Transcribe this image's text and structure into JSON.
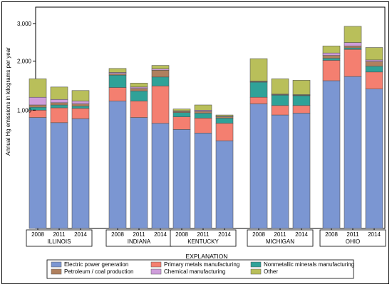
{
  "chart_data": {
    "type": "bar",
    "stacked": true,
    "ylabel": "Annual Hg emissions in kilograms per year",
    "yscale": "sqrt",
    "ylim": [
      0,
      3500
    ],
    "yticks": [
      1000,
      2000,
      3000
    ],
    "ytick_labels": [
      "1,000",
      "2,000",
      "3,000"
    ],
    "grid": false,
    "legend_title": "EXPLANATION",
    "legend_placement": "bottom",
    "groups": [
      {
        "name": "ILLINOIS",
        "years": [
          "2008",
          "2011",
          "2014"
        ]
      },
      {
        "name": "INDIANA",
        "years": [
          "2008",
          "2011",
          "2014"
        ]
      },
      {
        "name": "KENTUCKY",
        "years": [
          "2008",
          "2011",
          "2014"
        ]
      },
      {
        "name": "MICHIGAN",
        "years": [
          "2008",
          "2011",
          "2014"
        ]
      },
      {
        "name": "OHIO",
        "years": [
          "2008",
          "2011",
          "2014"
        ]
      }
    ],
    "series": [
      {
        "name": "Electric power generation",
        "color": "#7b96d2",
        "values": [
          880,
          800,
          860,
          1160,
          880,
          790,
          700,
          650,
          550,
          1110,
          920,
          950,
          1560,
          1650,
          1390
        ]
      },
      {
        "name": "Primary metals manufacturing",
        "color": "#f47f70",
        "values": [
          120,
          240,
          170,
          260,
          280,
          660,
          190,
          220,
          240,
          120,
          160,
          130,
          460,
          640,
          360
        ]
      },
      {
        "name": "Nonmetallic minerals manufacturing",
        "color": "#2fa298",
        "values": [
          50,
          50,
          40,
          260,
          190,
          190,
          70,
          80,
          80,
          300,
          190,
          180,
          50,
          40,
          130
        ]
      },
      {
        "name": "Petroleum / coal production",
        "color": "#b0805e",
        "values": [
          40,
          40,
          40,
          30,
          50,
          150,
          20,
          30,
          20,
          10,
          10,
          10,
          70,
          50,
          110
        ]
      },
      {
        "name": "Chemical manufacturing",
        "color": "#cf9ddb",
        "values": [
          140,
          60,
          50,
          30,
          30,
          30,
          10,
          20,
          10,
          10,
          10,
          10,
          60,
          90,
          40
        ]
      },
      {
        "name": "Other",
        "color": "#b9bf5a",
        "values": [
          370,
          240,
          200,
          90,
          80,
          80,
          30,
          90,
          20,
          510,
          310,
          290,
          180,
          450,
          310
        ]
      }
    ]
  }
}
